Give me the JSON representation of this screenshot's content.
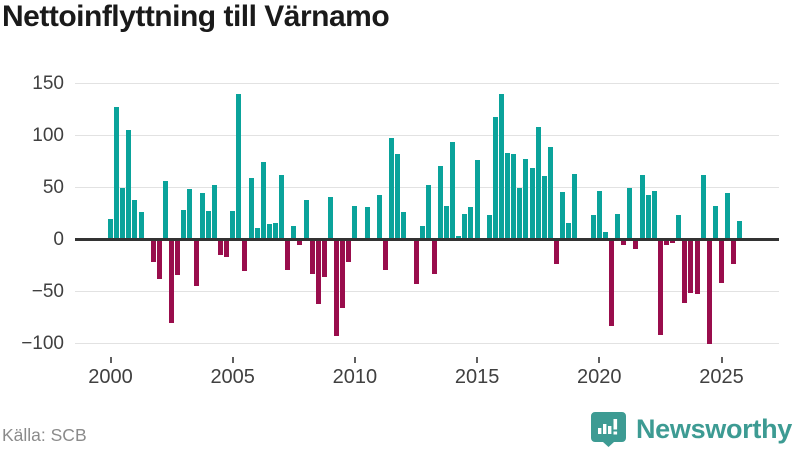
{
  "title": "Nettoinflyttning till Värnamo",
  "source": "Källa: SCB",
  "brand": {
    "name": "Newsworthy",
    "icon": "bar-chart-speech-bubble-icon"
  },
  "colors": {
    "bar_positive": "#0aa39b",
    "bar_negative": "#990d4c",
    "zero_axis": "#333333",
    "gridline": "#e2e2e2",
    "tick_label": "#404040",
    "title_text": "#1a1a1a",
    "source_text": "#8b8b8b",
    "brand_teal": "#3d9b93"
  },
  "chart_data": {
    "type": "bar",
    "title": "Nettoinflyttning till Värnamo",
    "frequency": "quarterly",
    "start_year": 2000,
    "start_quarter": 1,
    "y_ticks": [
      150,
      100,
      50,
      0,
      -50,
      -100
    ],
    "x_ticks": [
      2000,
      2005,
      2010,
      2015,
      2020,
      2025
    ],
    "ylim": [
      -105,
      155
    ],
    "grid": "horizontal",
    "legend": "none",
    "values": [
      20,
      127,
      50,
      105,
      38,
      26,
      0,
      -20,
      -37,
      56,
      -79,
      -33,
      28,
      49,
      -43,
      45,
      27,
      52,
      -13,
      -15,
      27,
      140,
      -29,
      59,
      11,
      75,
      15,
      16,
      62,
      -28,
      13,
      -4,
      38,
      -32,
      -61,
      -35,
      41,
      -91,
      -64,
      -20,
      32,
      0,
      31,
      0,
      43,
      -28,
      98,
      82,
      26,
      0,
      -41,
      13,
      52,
      -32,
      71,
      32,
      94,
      3,
      25,
      31,
      76,
      0,
      24,
      118,
      140,
      83,
      82,
      50,
      77,
      69,
      108,
      61,
      89,
      -22,
      46,
      16,
      63,
      0,
      0,
      24,
      47,
      7,
      -82,
      25,
      -4,
      50,
      -8,
      62,
      43,
      47,
      -90,
      -4,
      -2,
      24,
      -60,
      -50,
      -51,
      62,
      -99,
      32,
      -40,
      45,
      -22,
      18
    ]
  }
}
